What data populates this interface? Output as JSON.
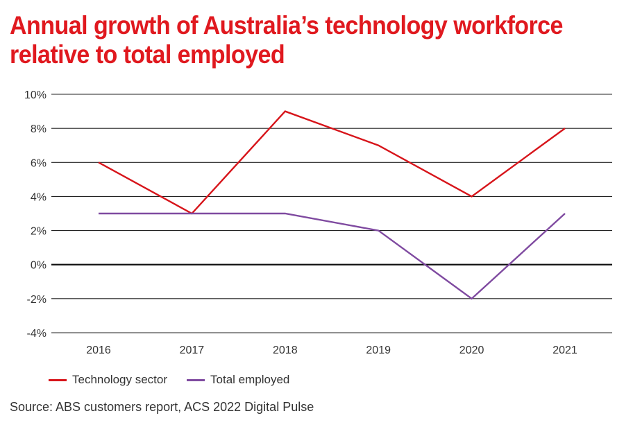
{
  "title_lines": [
    "Annual growth of Australia’s technology workforce",
    "relative to total employed"
  ],
  "colors": {
    "title": "#e0191f",
    "grid": "#222222",
    "zero_line": "#111111",
    "technology": "#d7141a",
    "total": "#7f4aa0"
  },
  "legend": {
    "technology": "Technology sector",
    "total": "Total employed"
  },
  "source": "Source: ABS customers report, ACS 2022 Digital Pulse",
  "chart_data": {
    "type": "line",
    "categories": [
      "2016",
      "2017",
      "2018",
      "2019",
      "2020",
      "2021"
    ],
    "series": [
      {
        "name": "Technology sector",
        "key": "technology",
        "values": [
          6,
          3,
          9,
          7,
          4,
          8
        ]
      },
      {
        "name": "Total employed",
        "key": "total",
        "values": [
          3,
          3,
          3,
          2,
          -2,
          3
        ]
      }
    ],
    "ylim": [
      -4,
      10
    ],
    "yticks": [
      10,
      8,
      6,
      4,
      2,
      0,
      -2,
      -4
    ],
    "ytick_labels": [
      "10%",
      "8%",
      "6%",
      "4%",
      "2%",
      "0%",
      "-2%",
      "-4%"
    ],
    "grid": true,
    "legend_position": "bottom-left"
  }
}
